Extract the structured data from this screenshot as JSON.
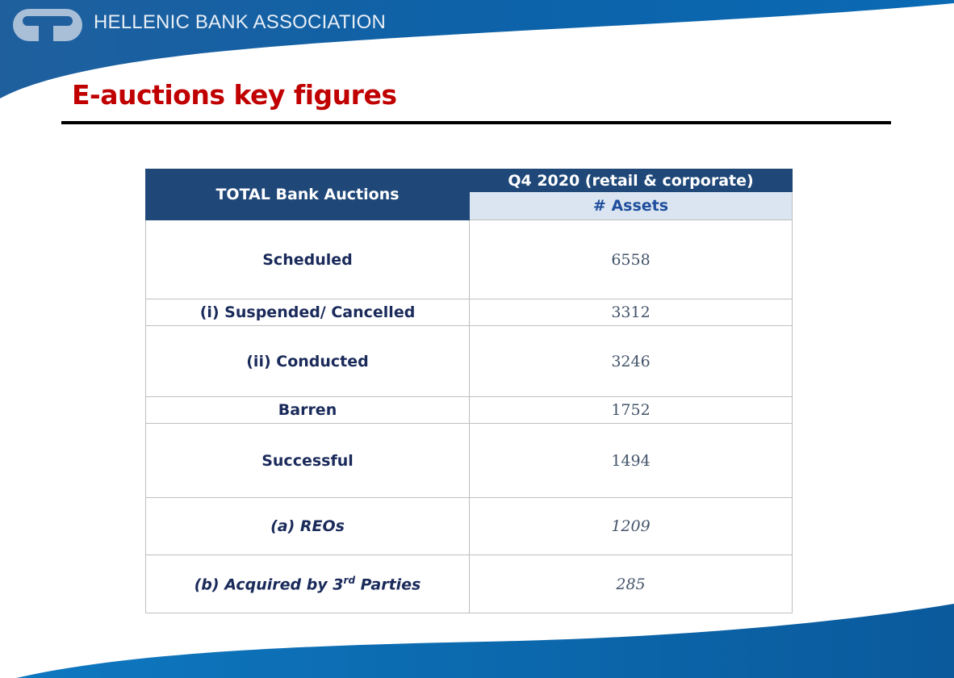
{
  "header": {
    "organization": "HELLENIC BANK ASSOCIATION",
    "title": "E-auctions key figures"
  },
  "colors": {
    "brand_blue": "#0b5fa5",
    "title_red": "#c00000",
    "header_navy": "#1f4778",
    "subheader_bg": "#dbe5f1"
  },
  "table": {
    "corner_header": "TOTAL Bank Auctions",
    "period_header": "Q4 2020 (retail & corporate)",
    "column_header": "# Assets",
    "rows": [
      {
        "label": "Scheduled",
        "value": "6558"
      },
      {
        "label": "(i) Suspended/ Cancelled",
        "value": "3312"
      },
      {
        "label": "(ii) Conducted",
        "value": "3246"
      },
      {
        "label": "Barren",
        "value": "1752"
      },
      {
        "label": "Successful",
        "value": "1494"
      },
      {
        "label": "(a) REOs",
        "value": "1209"
      },
      {
        "label_prefix": "(b) Acquired by 3",
        "label_sup": "rd",
        "label_suffix": " Parties",
        "value": "285"
      }
    ]
  }
}
